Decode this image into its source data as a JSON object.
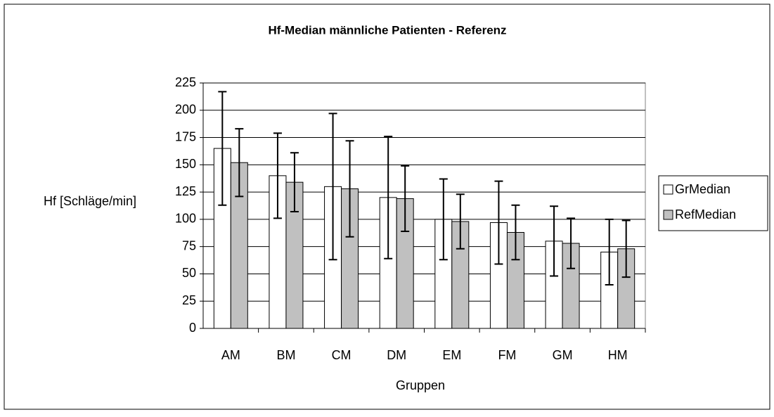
{
  "chart_data": {
    "type": "bar",
    "title": "Hf-Median männliche Patienten - Referenz",
    "x_label": "Gruppen",
    "y_label": "Hf [Schläge/min]",
    "categories": [
      "AM",
      "BM",
      "CM",
      "DM",
      "EM",
      "FM",
      "GM",
      "HM"
    ],
    "series": [
      {
        "name": "GrMedian",
        "color": "#ffffff",
        "values": [
          165,
          140,
          130,
          120,
          100,
          97,
          80,
          70
        ],
        "errors": [
          52,
          39,
          67,
          56,
          37,
          38,
          32,
          30
        ]
      },
      {
        "name": "RefMedian",
        "color": "#c0c0c0",
        "values": [
          152,
          134,
          128,
          119,
          98,
          88,
          78,
          73
        ],
        "errors": [
          31,
          27,
          44,
          30,
          25,
          25,
          23,
          26
        ]
      }
    ],
    "ylim": [
      0,
      225
    ],
    "yticks": [
      0,
      25,
      50,
      75,
      100,
      125,
      150,
      175,
      200,
      225
    ],
    "grid": true,
    "legend": "right"
  }
}
